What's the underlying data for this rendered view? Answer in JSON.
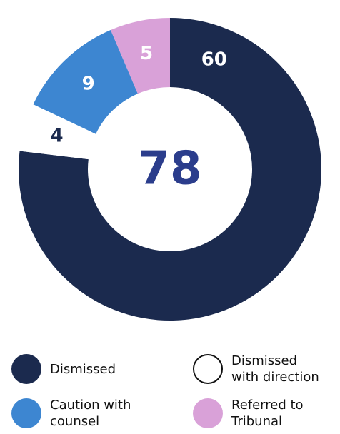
{
  "chart_data": {
    "type": "donut",
    "categories": [
      "Dismissed",
      "Dismissed with direction",
      "Caution with counsel",
      "Referred to Tribunal"
    ],
    "values": [
      60,
      4,
      9,
      5
    ],
    "colors": [
      "#1b2a4e",
      "#ffffff",
      "#3d86d1",
      "#d9a1d8"
    ],
    "total": 78
  }
}
